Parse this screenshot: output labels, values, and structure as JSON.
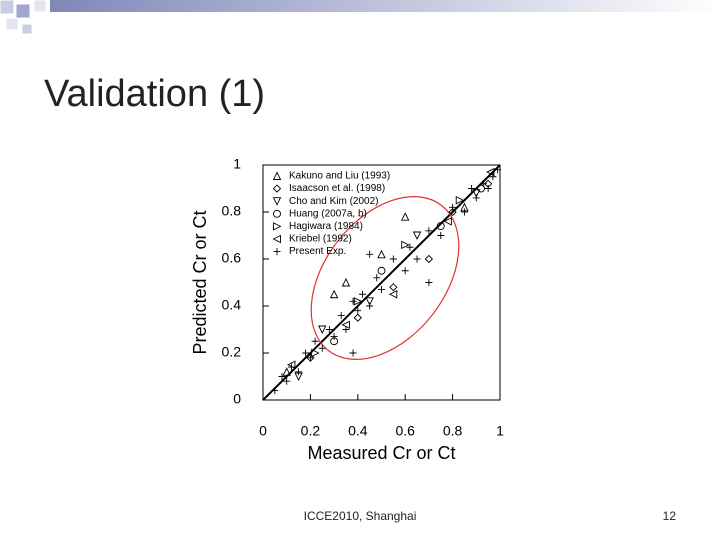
{
  "slide": {
    "title": "Validation (1)",
    "footer": "ICCE2010, Shanghai",
    "page_number": "12"
  },
  "chart_data": {
    "type": "scatter",
    "xlabel": "Measured Cr or Ct",
    "ylabel": "Predicted Cr or Ct",
    "xlim": [
      0,
      1
    ],
    "ylim": [
      0,
      1
    ],
    "xticks": [
      0,
      0.2,
      0.4,
      0.6,
      0.8,
      1
    ],
    "yticks": [
      0,
      0.2,
      0.4,
      0.6,
      0.8,
      1
    ],
    "series": [
      {
        "name": "Kakuno and Liu (1993)",
        "marker": "triangle-up",
        "color": "#000000",
        "x": [
          0.1,
          0.3,
          0.35,
          0.5,
          0.6,
          0.85
        ],
        "y": [
          0.12,
          0.45,
          0.5,
          0.62,
          0.78,
          0.82
        ]
      },
      {
        "name": "Isaacson et al. (1998)",
        "marker": "diamond",
        "color": "#000000",
        "x": [
          0.2,
          0.4,
          0.55,
          0.7,
          0.8,
          0.95
        ],
        "y": [
          0.18,
          0.35,
          0.48,
          0.6,
          0.8,
          0.92
        ]
      },
      {
        "name": "Cho and Kim (2002)",
        "marker": "triangle-down",
        "color": "#000000",
        "x": [
          0.15,
          0.25,
          0.45,
          0.65,
          0.9
        ],
        "y": [
          0.1,
          0.3,
          0.42,
          0.7,
          0.88
        ]
      },
      {
        "name": "Huang (2007a, b)",
        "marker": "circle",
        "color": "#000000",
        "x": [
          0.3,
          0.5,
          0.75,
          0.92
        ],
        "y": [
          0.25,
          0.55,
          0.74,
          0.9
        ]
      },
      {
        "name": "Hagiwara (1984)",
        "marker": "triangle-right",
        "color": "#000000",
        "x": [
          0.22,
          0.4,
          0.6,
          0.83
        ],
        "y": [
          0.2,
          0.42,
          0.66,
          0.85
        ]
      },
      {
        "name": "Kriebel (1992)",
        "marker": "triangle-left",
        "color": "#000000",
        "x": [
          0.12,
          0.35,
          0.55,
          0.78,
          0.96
        ],
        "y": [
          0.15,
          0.32,
          0.45,
          0.76,
          0.97
        ]
      },
      {
        "name": "Present Exp.",
        "marker": "plus",
        "color": "#000000",
        "x": [
          0.05,
          0.08,
          0.1,
          0.12,
          0.15,
          0.18,
          0.2,
          0.22,
          0.25,
          0.28,
          0.3,
          0.33,
          0.35,
          0.38,
          0.4,
          0.42,
          0.45,
          0.48,
          0.5,
          0.55,
          0.6,
          0.62,
          0.65,
          0.7,
          0.75,
          0.8,
          0.85,
          0.88,
          0.9,
          0.93,
          0.95,
          0.97,
          0.99,
          0.38,
          0.45,
          0.7
        ],
        "y": [
          0.04,
          0.1,
          0.08,
          0.14,
          0.12,
          0.2,
          0.18,
          0.25,
          0.22,
          0.3,
          0.27,
          0.36,
          0.3,
          0.42,
          0.38,
          0.45,
          0.4,
          0.52,
          0.47,
          0.6,
          0.55,
          0.65,
          0.6,
          0.72,
          0.7,
          0.82,
          0.8,
          0.9,
          0.86,
          0.92,
          0.9,
          0.95,
          0.98,
          0.2,
          0.62,
          0.5
        ]
      }
    ]
  }
}
